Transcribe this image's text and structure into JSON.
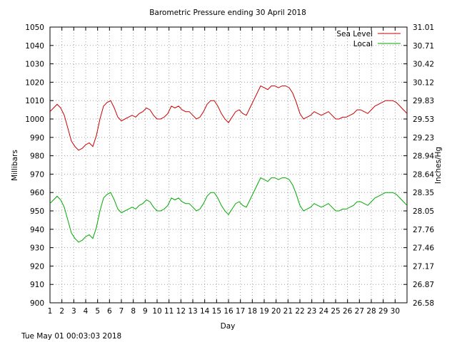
{
  "chart_data": {
    "type": "line",
    "title": "Barometric Pressure ending 30 April 2018",
    "xlabel": "Day",
    "ylabel": "Millibars",
    "y2label": "Inches/Hg",
    "footer": "Tue May 01 00:03:03 2018",
    "xlim": [
      1,
      31
    ],
    "ylim": [
      900,
      1050
    ],
    "x_ticks": [
      "1",
      "2",
      "3",
      "4",
      "5",
      "6",
      "7",
      "8",
      "9",
      "10",
      "11",
      "12",
      "13",
      "14",
      "15",
      "16",
      "17",
      "18",
      "19",
      "20",
      "21",
      "22",
      "23",
      "24",
      "25",
      "26",
      "27",
      "28",
      "29",
      "30"
    ],
    "y_ticks": [
      "900",
      "910",
      "920",
      "930",
      "940",
      "950",
      "960",
      "970",
      "980",
      "990",
      "1000",
      "1010",
      "1020",
      "1030",
      "1040",
      "1050"
    ],
    "y2_ticks": [
      "26.58",
      "26.87",
      "27.17",
      "27.46",
      "27.76",
      "28.05",
      "28.35",
      "28.64",
      "28.94",
      "29.23",
      "29.53",
      "29.83",
      "30.12",
      "30.42",
      "30.71",
      "31.01"
    ],
    "grid": true,
    "legend_position": "top-right",
    "series": [
      {
        "name": "Sea Level",
        "color": "#cc0000",
        "x": [
          1.0,
          1.3,
          1.6,
          1.9,
          2.2,
          2.5,
          2.8,
          3.1,
          3.4,
          3.7,
          4.0,
          4.3,
          4.6,
          4.9,
          5.2,
          5.5,
          5.8,
          6.1,
          6.4,
          6.7,
          7.0,
          7.3,
          7.6,
          7.9,
          8.2,
          8.5,
          8.8,
          9.1,
          9.4,
          9.7,
          10.0,
          10.3,
          10.6,
          10.9,
          11.2,
          11.5,
          11.8,
          12.1,
          12.4,
          12.7,
          13.0,
          13.3,
          13.6,
          13.9,
          14.2,
          14.5,
          14.8,
          15.1,
          15.4,
          15.7,
          16.0,
          16.3,
          16.6,
          16.9,
          17.2,
          17.5,
          17.8,
          18.1,
          18.4,
          18.7,
          19.0,
          19.3,
          19.6,
          19.9,
          20.2,
          20.5,
          20.8,
          21.1,
          21.4,
          21.7,
          22.0,
          22.3,
          22.6,
          22.9,
          23.2,
          23.5,
          23.8,
          24.1,
          24.4,
          24.7,
          25.0,
          25.3,
          25.6,
          25.9,
          26.2,
          26.5,
          26.8,
          27.1,
          27.4,
          27.7,
          28.0,
          28.3,
          28.6,
          28.9,
          29.2,
          29.5,
          29.8,
          30.1,
          30.4,
          30.7,
          31.0
        ],
        "values": [
          1004,
          1006,
          1008,
          1006,
          1002,
          995,
          988,
          985,
          983,
          984,
          986,
          987,
          985,
          991,
          1000,
          1007,
          1009,
          1010,
          1006,
          1001,
          999,
          1000,
          1001,
          1002,
          1001,
          1003,
          1004,
          1006,
          1005,
          1002,
          1000,
          1000,
          1001,
          1003,
          1007,
          1006,
          1007,
          1005,
          1004,
          1004,
          1002,
          1000,
          1001,
          1004,
          1008,
          1010,
          1010,
          1007,
          1003,
          1000,
          998,
          1001,
          1004,
          1005,
          1003,
          1002,
          1006,
          1010,
          1014,
          1018,
          1017,
          1016,
          1018,
          1018,
          1017,
          1018,
          1018,
          1017,
          1014,
          1009,
          1003,
          1000,
          1001,
          1002,
          1004,
          1003,
          1002,
          1003,
          1004,
          1002,
          1000,
          1000,
          1001,
          1001,
          1002,
          1003,
          1005,
          1005,
          1004,
          1003,
          1005,
          1007,
          1008,
          1009,
          1010,
          1010,
          1010,
          1009,
          1007,
          1005,
          1003
        ]
      },
      {
        "name": "Local",
        "color": "#00aa00",
        "x": [
          1.0,
          1.3,
          1.6,
          1.9,
          2.2,
          2.5,
          2.8,
          3.1,
          3.4,
          3.7,
          4.0,
          4.3,
          4.6,
          4.9,
          5.2,
          5.5,
          5.8,
          6.1,
          6.4,
          6.7,
          7.0,
          7.3,
          7.6,
          7.9,
          8.2,
          8.5,
          8.8,
          9.1,
          9.4,
          9.7,
          10.0,
          10.3,
          10.6,
          10.9,
          11.2,
          11.5,
          11.8,
          12.1,
          12.4,
          12.7,
          13.0,
          13.3,
          13.6,
          13.9,
          14.2,
          14.5,
          14.8,
          15.1,
          15.4,
          15.7,
          16.0,
          16.3,
          16.6,
          16.9,
          17.2,
          17.5,
          17.8,
          18.1,
          18.4,
          18.7,
          19.0,
          19.3,
          19.6,
          19.9,
          20.2,
          20.5,
          20.8,
          21.1,
          21.4,
          21.7,
          22.0,
          22.3,
          22.6,
          22.9,
          23.2,
          23.5,
          23.8,
          24.1,
          24.4,
          24.7,
          25.0,
          25.3,
          25.6,
          25.9,
          26.2,
          26.5,
          26.8,
          27.1,
          27.4,
          27.7,
          28.0,
          28.3,
          28.6,
          28.9,
          29.2,
          29.5,
          29.8,
          30.1,
          30.4,
          30.7,
          31.0
        ],
        "values": [
          954,
          956,
          958,
          956,
          952,
          945,
          938,
          935,
          933,
          934,
          936,
          937,
          935,
          941,
          950,
          957,
          959,
          960,
          956,
          951,
          949,
          950,
          951,
          952,
          951,
          953,
          954,
          956,
          955,
          952,
          950,
          950,
          951,
          953,
          957,
          956,
          957,
          955,
          954,
          954,
          952,
          950,
          951,
          954,
          958,
          960,
          960,
          957,
          953,
          950,
          948,
          951,
          954,
          955,
          953,
          952,
          956,
          960,
          964,
          968,
          967,
          966,
          968,
          968,
          967,
          968,
          968,
          967,
          964,
          959,
          953,
          950,
          951,
          952,
          954,
          953,
          952,
          953,
          954,
          952,
          950,
          950,
          951,
          951,
          952,
          953,
          955,
          955,
          954,
          953,
          955,
          957,
          958,
          959,
          960,
          960,
          960,
          959,
          957,
          955,
          953
        ]
      }
    ]
  }
}
